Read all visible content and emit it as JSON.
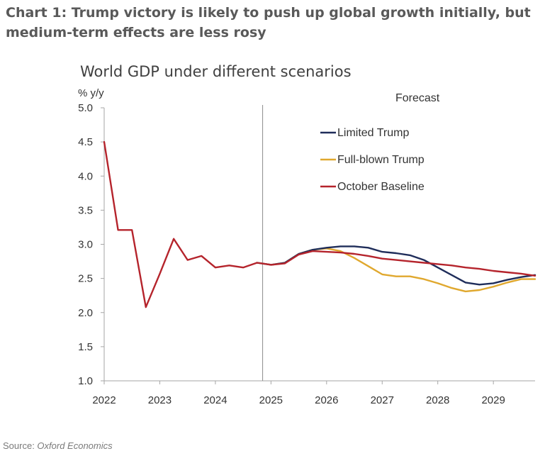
{
  "header": {
    "title": "Chart 1: Trump victory is likely to push up global growth initially, but medium-term effects are less rosy"
  },
  "source": {
    "prefix": "Source: ",
    "name": "Oxford Economics"
  },
  "chart_data": {
    "type": "line",
    "title": "World GDP under different scenarios",
    "ylabel": "% y/y",
    "xlabel": "",
    "xlim": [
      2022,
      2029.75
    ],
    "ylim": [
      1.0,
      5.0
    ],
    "x_ticks": [
      2022,
      2023,
      2024,
      2025,
      2026,
      2027,
      2028,
      2029
    ],
    "x_tick_labels": [
      "2022",
      "2023",
      "2024",
      "2025",
      "2026",
      "2027",
      "2028",
      "2029"
    ],
    "y_ticks": [
      1.0,
      1.5,
      2.0,
      2.5,
      3.0,
      3.5,
      4.0,
      4.5,
      5.0
    ],
    "y_tick_labels": [
      "1.0",
      "1.5",
      "2.0",
      "2.5",
      "3.0",
      "3.5",
      "4.0",
      "4.5",
      "5.0"
    ],
    "grid": false,
    "legend_position": "top-right",
    "forecast_start": 2024.85,
    "annotations": [
      {
        "text": "Forecast"
      }
    ],
    "series": [
      {
        "name": "Limited Trump",
        "color": "#1f2d5a",
        "x": [
          2024.75,
          2025.0,
          2025.25,
          2025.5,
          2025.75,
          2026.0,
          2026.25,
          2026.5,
          2026.75,
          2027.0,
          2027.25,
          2027.5,
          2027.75,
          2028.0,
          2028.25,
          2028.5,
          2028.75,
          2029.0,
          2029.25,
          2029.5,
          2029.75
        ],
        "y": [
          2.73,
          2.7,
          2.73,
          2.86,
          2.92,
          2.95,
          2.97,
          2.97,
          2.95,
          2.89,
          2.87,
          2.84,
          2.77,
          2.66,
          2.55,
          2.44,
          2.41,
          2.43,
          2.48,
          2.52,
          2.55
        ]
      },
      {
        "name": "Full-blown Trump",
        "color": "#e0a82e",
        "x": [
          2024.75,
          2025.0,
          2025.25,
          2025.5,
          2025.75,
          2026.0,
          2026.25,
          2026.5,
          2026.75,
          2027.0,
          2027.25,
          2027.5,
          2027.75,
          2028.0,
          2028.25,
          2028.5,
          2028.75,
          2029.0,
          2029.25,
          2029.5,
          2029.75
        ],
        "y": [
          2.73,
          2.7,
          2.73,
          2.86,
          2.92,
          2.94,
          2.9,
          2.8,
          2.68,
          2.56,
          2.53,
          2.53,
          2.49,
          2.43,
          2.36,
          2.31,
          2.33,
          2.38,
          2.44,
          2.49,
          2.49
        ]
      },
      {
        "name": "October Baseline",
        "color": "#b5242c",
        "x": [
          2022.0,
          2022.25,
          2022.5,
          2022.75,
          2023.0,
          2023.25,
          2023.5,
          2023.75,
          2024.0,
          2024.25,
          2024.5,
          2024.75,
          2025.0,
          2025.25,
          2025.5,
          2025.75,
          2026.0,
          2026.25,
          2026.5,
          2026.75,
          2027.0,
          2027.25,
          2027.5,
          2027.75,
          2028.0,
          2028.25,
          2028.5,
          2028.75,
          2029.0,
          2029.25,
          2029.5,
          2029.75
        ],
        "y": [
          4.5,
          3.21,
          3.21,
          2.08,
          2.57,
          3.08,
          2.77,
          2.83,
          2.66,
          2.69,
          2.66,
          2.73,
          2.7,
          2.72,
          2.85,
          2.9,
          2.89,
          2.88,
          2.86,
          2.83,
          2.79,
          2.77,
          2.75,
          2.73,
          2.71,
          2.69,
          2.66,
          2.64,
          2.61,
          2.59,
          2.57,
          2.54
        ]
      }
    ]
  }
}
